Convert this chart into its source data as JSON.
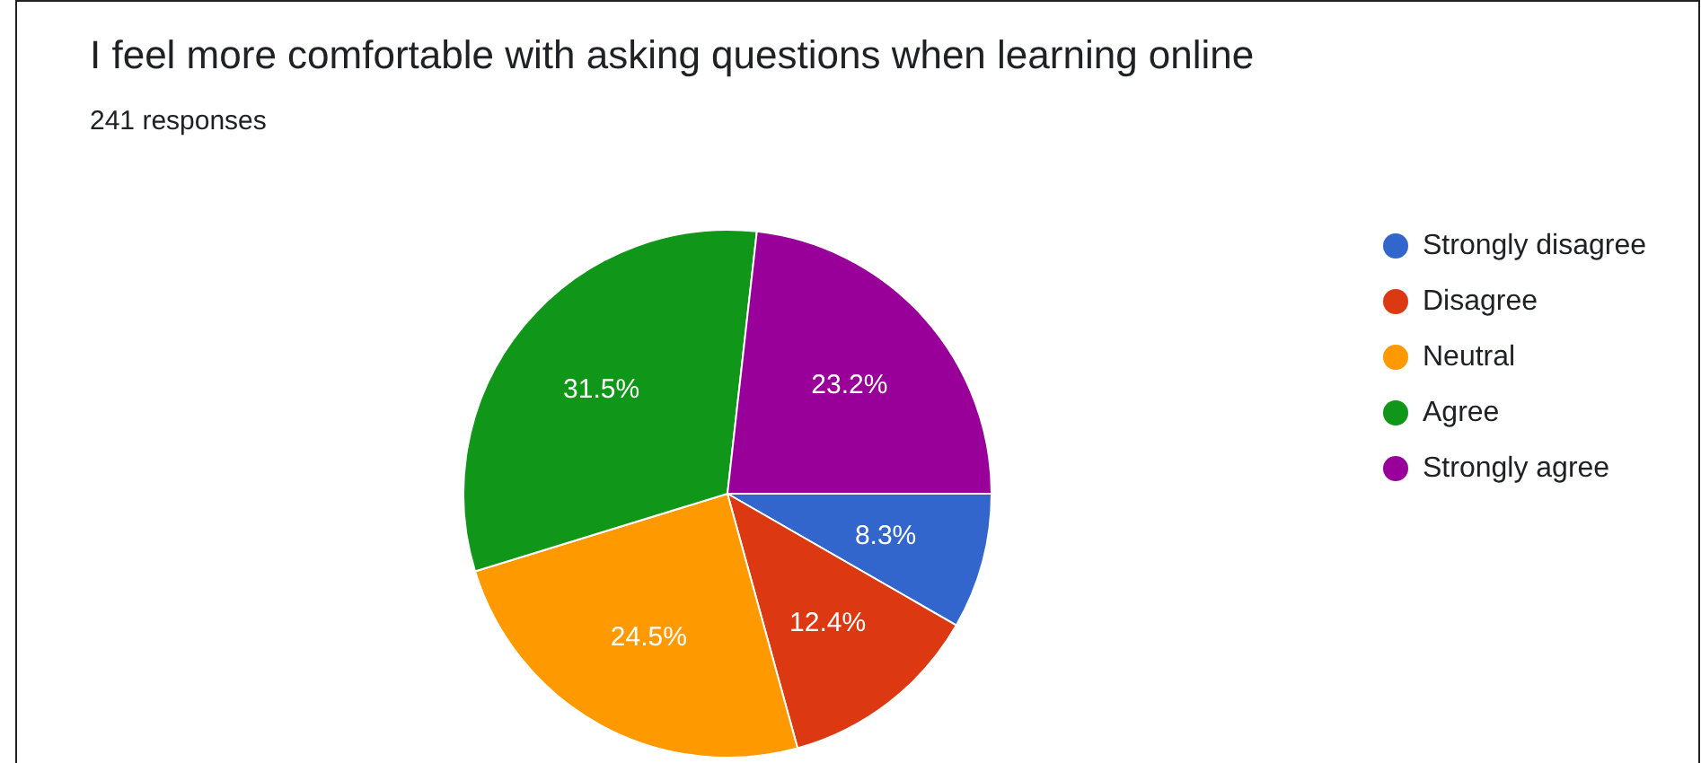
{
  "chart_data": {
    "type": "pie",
    "title": "I feel more comfortable with asking questions when learning online",
    "subtitle": "241 responses",
    "categories": [
      "Strongly disagree",
      "Disagree",
      "Neutral",
      "Agree",
      "Strongly agree"
    ],
    "values": [
      8.3,
      12.4,
      24.5,
      31.5,
      23.2
    ],
    "colors": [
      "#3366cc",
      "#dc3912",
      "#ff9900",
      "#109618",
      "#990099"
    ],
    "value_labels": [
      "8.3%",
      "12.4%",
      "24.5%",
      "31.5%",
      "23.2%"
    ],
    "legend": "right"
  }
}
